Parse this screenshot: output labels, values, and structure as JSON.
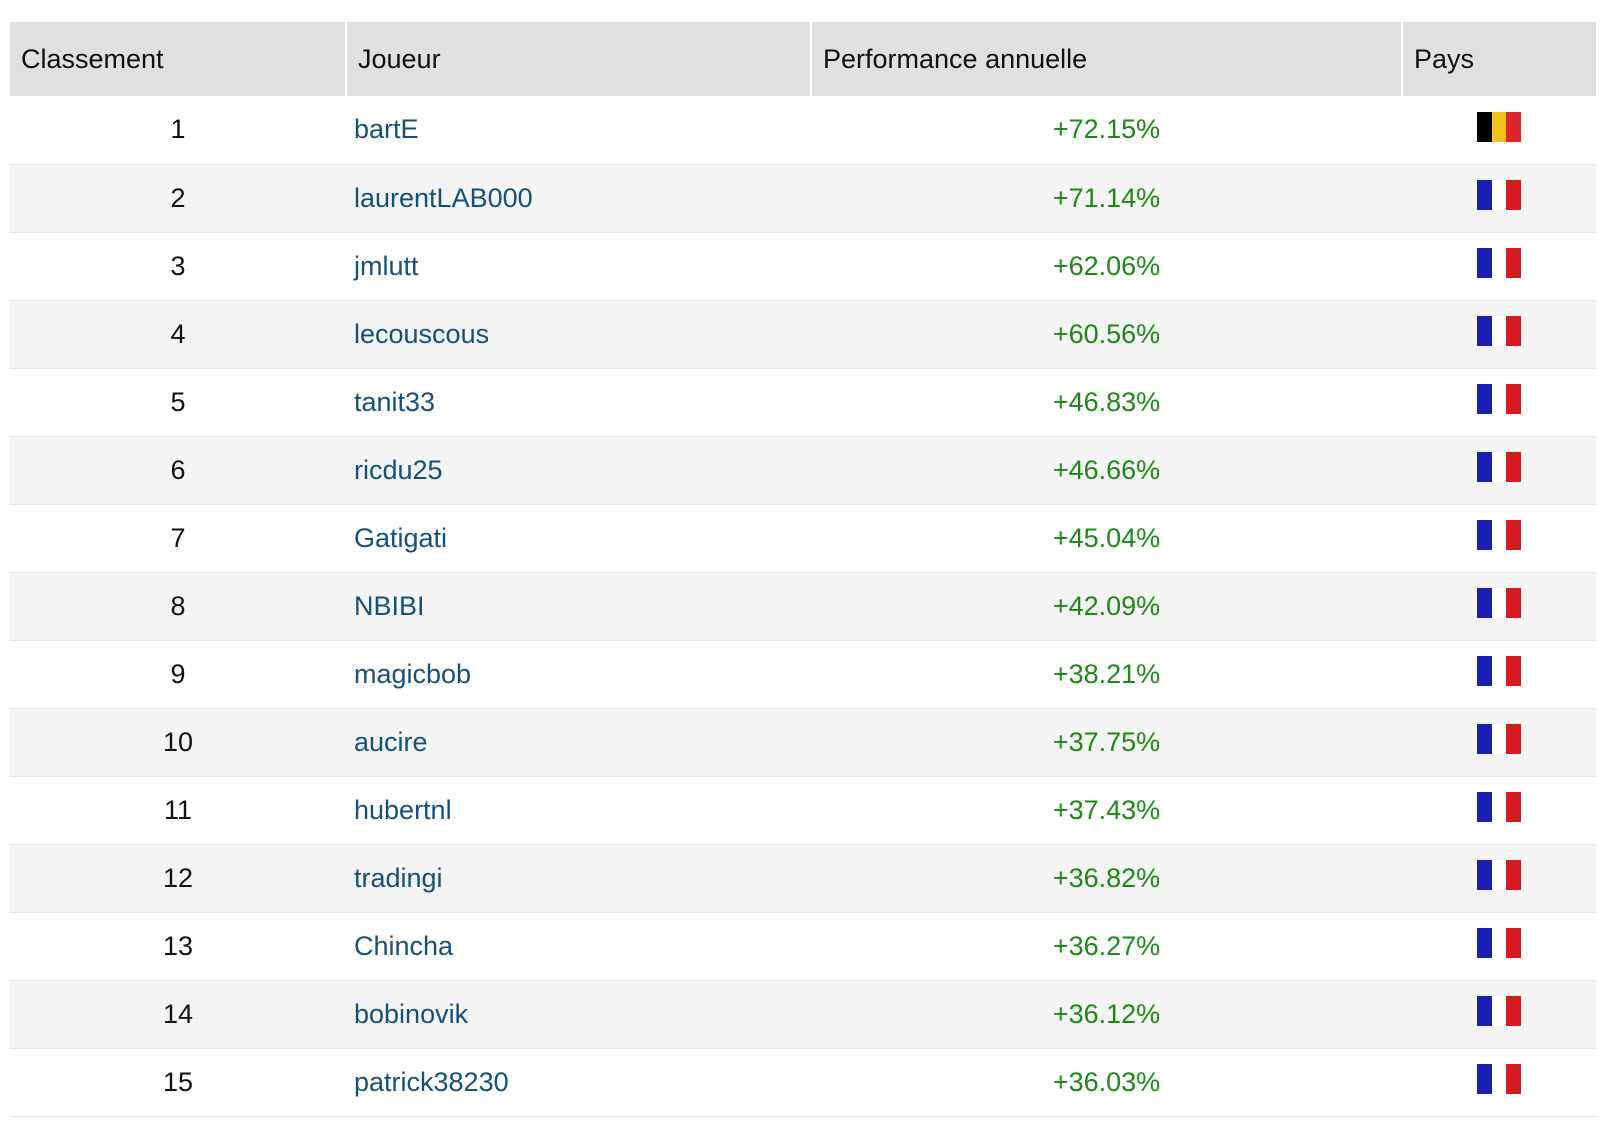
{
  "table": {
    "headers": {
      "rank": "Classement",
      "player": "Joueur",
      "performance": "Performance annuelle",
      "country": "Pays"
    },
    "rows": [
      {
        "rank": "1",
        "player": "bartE",
        "performance": "+72.15%",
        "country": "be"
      },
      {
        "rank": "2",
        "player": "laurentLAB000",
        "performance": "+71.14%",
        "country": "fr"
      },
      {
        "rank": "3",
        "player": "jmlutt",
        "performance": "+62.06%",
        "country": "fr"
      },
      {
        "rank": "4",
        "player": "lecouscous",
        "performance": "+60.56%",
        "country": "fr"
      },
      {
        "rank": "5",
        "player": "tanit33",
        "performance": "+46.83%",
        "country": "fr"
      },
      {
        "rank": "6",
        "player": "ricdu25",
        "performance": "+46.66%",
        "country": "fr"
      },
      {
        "rank": "7",
        "player": "Gatigati",
        "performance": "+45.04%",
        "country": "fr"
      },
      {
        "rank": "8",
        "player": "NBIBI",
        "performance": "+42.09%",
        "country": "fr"
      },
      {
        "rank": "9",
        "player": "magicbob",
        "performance": "+38.21%",
        "country": "fr"
      },
      {
        "rank": "10",
        "player": "aucire",
        "performance": "+37.75%",
        "country": "fr"
      },
      {
        "rank": "11",
        "player": "hubertnl",
        "performance": "+37.43%",
        "country": "fr"
      },
      {
        "rank": "12",
        "player": "tradingi",
        "performance": "+36.82%",
        "country": "fr"
      },
      {
        "rank": "13",
        "player": "Chincha",
        "performance": "+36.27%",
        "country": "fr"
      },
      {
        "rank": "14",
        "player": "bobinovik",
        "performance": "+36.12%",
        "country": "fr"
      },
      {
        "rank": "15",
        "player": "patrick38230",
        "performance": "+36.03%",
        "country": "fr"
      }
    ]
  },
  "flags": {
    "fr": {
      "icon": "france-flag-icon",
      "colors": [
        "#1a1fb0",
        "#ffffff",
        "#d81920"
      ]
    },
    "be": {
      "icon": "belgium-flag-icon",
      "colors": [
        "#000000",
        "#f2c318",
        "#e0242b"
      ]
    }
  },
  "colors": {
    "player_link": "#13507a",
    "performance_positive": "#1a8a12",
    "header_background": "#e0e0e0",
    "row_alt_background": "#f4f4f4"
  }
}
